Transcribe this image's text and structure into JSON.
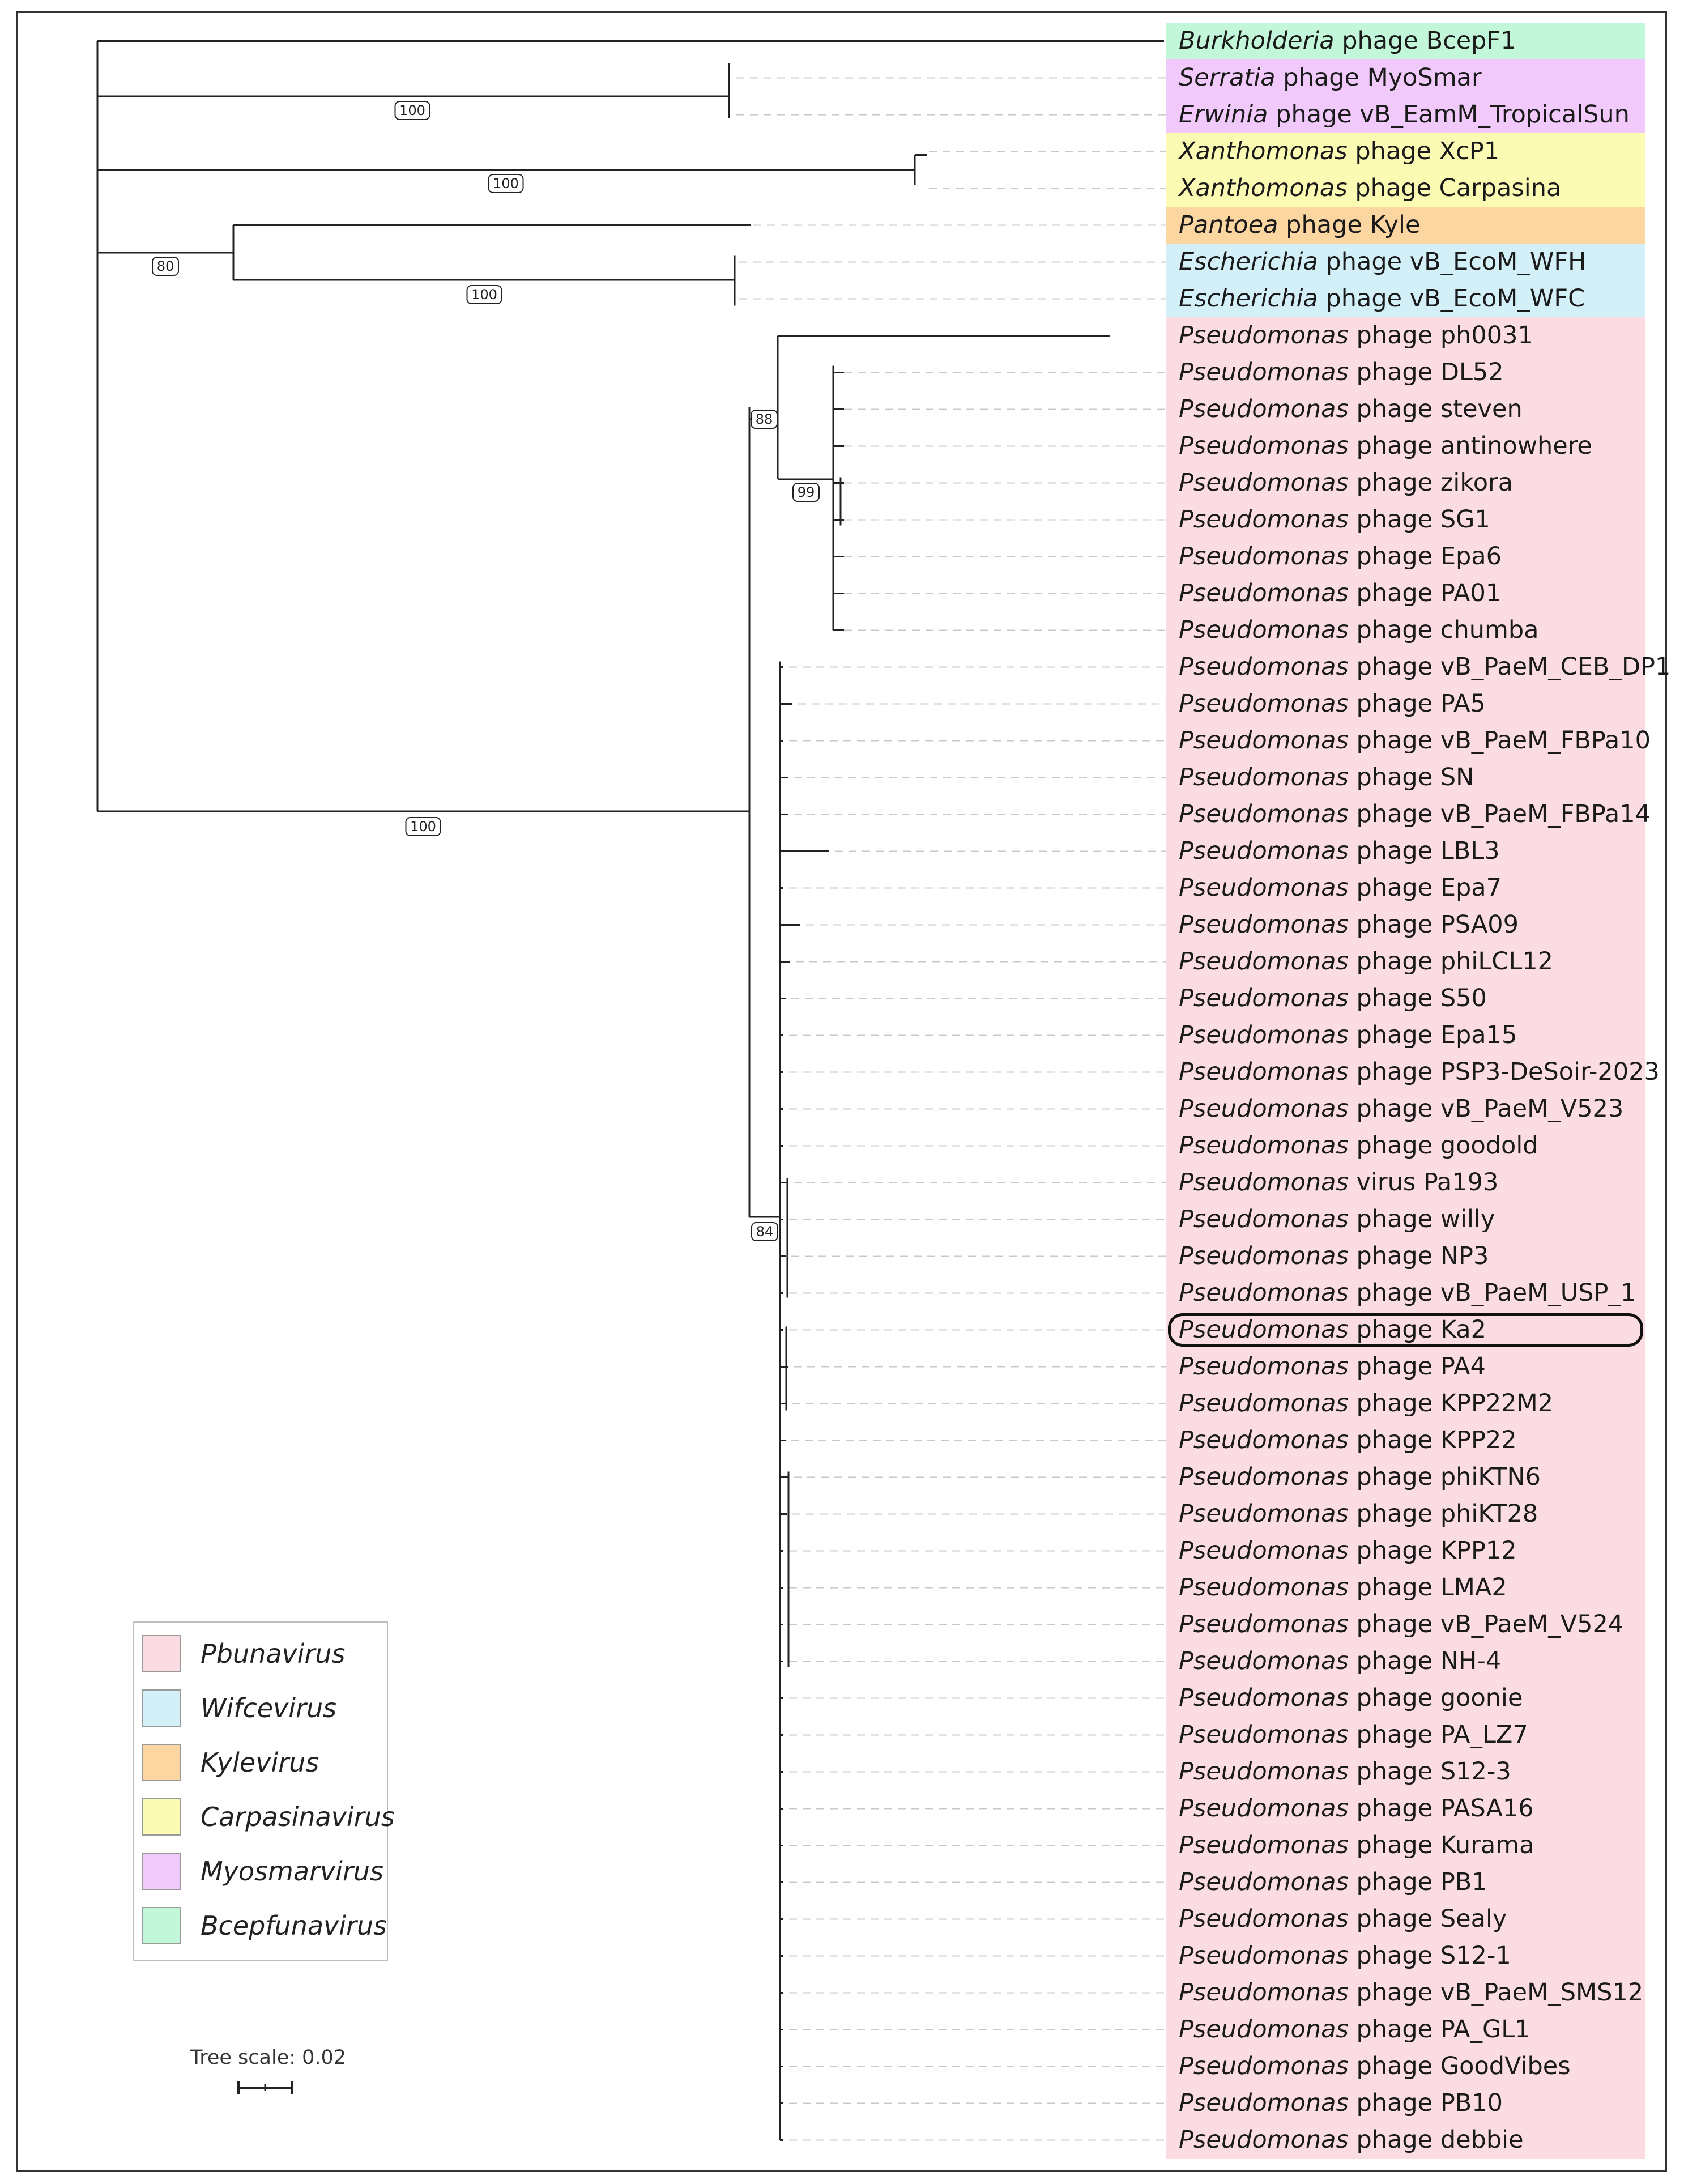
{
  "clades": [
    {
      "genus": "Pbunavirus",
      "color": "#fbdce2"
    },
    {
      "genus": "Wifcevirus",
      "color": "#d3f0f8"
    },
    {
      "genus": "Kylevirus",
      "color": "#fcd6a0"
    },
    {
      "genus": "Carpasinavirus",
      "color": "#fcfbb4"
    },
    {
      "genus": "Myosmarvirus",
      "color": "#f1c9fa"
    },
    {
      "genus": "Bcepfunavirus",
      "color": "#c3f7d9"
    }
  ],
  "leaves": [
    {
      "genus": "Burkholderia",
      "rest": " phage BcepF1",
      "clade": "Bcepfunavirus"
    },
    {
      "genus": "Serratia",
      "rest": " phage MyoSmar",
      "clade": "Myosmarvirus"
    },
    {
      "genus": "Erwinia",
      "rest": " phage vB_EamM_TropicalSun",
      "clade": "Myosmarvirus"
    },
    {
      "genus": "Xanthomonas",
      "rest": " phage XcP1",
      "clade": "Carpasinavirus"
    },
    {
      "genus": "Xanthomonas",
      "rest": " phage Carpasina",
      "clade": "Carpasinavirus"
    },
    {
      "genus": "Pantoea",
      "rest": " phage Kyle",
      "clade": "Kylevirus"
    },
    {
      "genus": "Escherichia",
      "rest": " phage vB_EcoM_WFH",
      "clade": "Wifcevirus"
    },
    {
      "genus": "Escherichia",
      "rest": " phage vB_EcoM_WFC",
      "clade": "Wifcevirus"
    },
    {
      "genus": "Pseudomonas",
      "rest": " phage ph0031",
      "clade": "Pbunavirus"
    },
    {
      "genus": "Pseudomonas",
      "rest": " phage DL52",
      "clade": "Pbunavirus"
    },
    {
      "genus": "Pseudomonas",
      "rest": " phage steven",
      "clade": "Pbunavirus"
    },
    {
      "genus": "Pseudomonas",
      "rest": " phage antinowhere",
      "clade": "Pbunavirus"
    },
    {
      "genus": "Pseudomonas",
      "rest": " phage zikora",
      "clade": "Pbunavirus"
    },
    {
      "genus": "Pseudomonas",
      "rest": " phage SG1",
      "clade": "Pbunavirus"
    },
    {
      "genus": "Pseudomonas",
      "rest": " phage Epa6",
      "clade": "Pbunavirus"
    },
    {
      "genus": "Pseudomonas",
      "rest": " phage PA01",
      "clade": "Pbunavirus"
    },
    {
      "genus": "Pseudomonas",
      "rest": " phage chumba",
      "clade": "Pbunavirus"
    },
    {
      "genus": "Pseudomonas",
      "rest": " phage vB_PaeM_CEB_DP1",
      "clade": "Pbunavirus"
    },
    {
      "genus": "Pseudomonas",
      "rest": " phage PA5",
      "clade": "Pbunavirus"
    },
    {
      "genus": "Pseudomonas",
      "rest": " phage vB_PaeM_FBPa10",
      "clade": "Pbunavirus"
    },
    {
      "genus": "Pseudomonas",
      "rest": " phage SN",
      "clade": "Pbunavirus"
    },
    {
      "genus": "Pseudomonas",
      "rest": " phage vB_PaeM_FBPa14",
      "clade": "Pbunavirus"
    },
    {
      "genus": "Pseudomonas",
      "rest": " phage LBL3",
      "clade": "Pbunavirus"
    },
    {
      "genus": "Pseudomonas",
      "rest": " phage Epa7",
      "clade": "Pbunavirus"
    },
    {
      "genus": "Pseudomonas",
      "rest": " phage PSA09",
      "clade": "Pbunavirus"
    },
    {
      "genus": "Pseudomonas",
      "rest": " phage phiLCL12",
      "clade": "Pbunavirus"
    },
    {
      "genus": "Pseudomonas",
      "rest": " phage S50",
      "clade": "Pbunavirus"
    },
    {
      "genus": "Pseudomonas",
      "rest": " phage Epa15",
      "clade": "Pbunavirus"
    },
    {
      "genus": "Pseudomonas",
      "rest": " phage PSP3-DeSoir-2023",
      "clade": "Pbunavirus"
    },
    {
      "genus": "Pseudomonas",
      "rest": " phage vB_PaeM_V523",
      "clade": "Pbunavirus"
    },
    {
      "genus": "Pseudomonas",
      "rest": " phage goodold",
      "clade": "Pbunavirus"
    },
    {
      "genus": "Pseudomonas",
      "rest": " virus Pa193",
      "clade": "Pbunavirus"
    },
    {
      "genus": "Pseudomonas",
      "rest": " phage willy",
      "clade": "Pbunavirus"
    },
    {
      "genus": "Pseudomonas",
      "rest": " phage NP3",
      "clade": "Pbunavirus"
    },
    {
      "genus": "Pseudomonas",
      "rest": " phage vB_PaeM_USP_1",
      "clade": "Pbunavirus"
    },
    {
      "genus": "Pseudomonas",
      "rest": " phage Ka2",
      "clade": "Pbunavirus",
      "highlighted": true
    },
    {
      "genus": "Pseudomonas",
      "rest": " phage PA4",
      "clade": "Pbunavirus"
    },
    {
      "genus": "Pseudomonas",
      "rest": " phage KPP22M2",
      "clade": "Pbunavirus"
    },
    {
      "genus": "Pseudomonas",
      "rest": " phage KPP22",
      "clade": "Pbunavirus"
    },
    {
      "genus": "Pseudomonas",
      "rest": " phage phiKTN6",
      "clade": "Pbunavirus"
    },
    {
      "genus": "Pseudomonas",
      "rest": " phage phiKT28",
      "clade": "Pbunavirus"
    },
    {
      "genus": "Pseudomonas",
      "rest": " phage KPP12",
      "clade": "Pbunavirus"
    },
    {
      "genus": "Pseudomonas",
      "rest": " phage LMA2",
      "clade": "Pbunavirus"
    },
    {
      "genus": "Pseudomonas",
      "rest": " phage vB_PaeM_V524",
      "clade": "Pbunavirus"
    },
    {
      "genus": "Pseudomonas",
      "rest": " phage NH-4",
      "clade": "Pbunavirus"
    },
    {
      "genus": "Pseudomonas",
      "rest": " phage goonie",
      "clade": "Pbunavirus"
    },
    {
      "genus": "Pseudomonas",
      "rest": " phage PA_LZ7",
      "clade": "Pbunavirus"
    },
    {
      "genus": "Pseudomonas",
      "rest": " phage S12-3",
      "clade": "Pbunavirus"
    },
    {
      "genus": "Pseudomonas",
      "rest": " phage PASA16",
      "clade": "Pbunavirus"
    },
    {
      "genus": "Pseudomonas",
      "rest": " phage Kurama",
      "clade": "Pbunavirus"
    },
    {
      "genus": "Pseudomonas",
      "rest": " phage PB1",
      "clade": "Pbunavirus"
    },
    {
      "genus": "Pseudomonas",
      "rest": " phage Sealy",
      "clade": "Pbunavirus"
    },
    {
      "genus": "Pseudomonas",
      "rest": " phage S12-1",
      "clade": "Pbunavirus"
    },
    {
      "genus": "Pseudomonas",
      "rest": " phage vB_PaeM_SMS12",
      "clade": "Pbunavirus"
    },
    {
      "genus": "Pseudomonas",
      "rest": " phage PA_GL1",
      "clade": "Pbunavirus"
    },
    {
      "genus": "Pseudomonas",
      "rest": " phage GoodVibes",
      "clade": "Pbunavirus"
    },
    {
      "genus": "Pseudomonas",
      "rest": " phage PB10",
      "clade": "Pbunavirus"
    },
    {
      "genus": "Pseudomonas",
      "rest": " phage debbie",
      "clade": "Pbunavirus"
    }
  ],
  "bootstrap": [
    {
      "node": "myosmarvirus",
      "value": "100"
    },
    {
      "node": "carpasinavirus",
      "value": "100"
    },
    {
      "node": "kyle-wifce",
      "value": "80"
    },
    {
      "node": "wifcevirus",
      "value": "100"
    },
    {
      "node": "pbunavirus",
      "value": "100"
    },
    {
      "node": "ph0031-group",
      "value": "88"
    },
    {
      "node": "dl52-group",
      "value": "99"
    },
    {
      "node": "pseudomonas-core",
      "value": "84"
    }
  ],
  "scale": {
    "label": "Tree scale: 0.02",
    "value": 0.02
  }
}
